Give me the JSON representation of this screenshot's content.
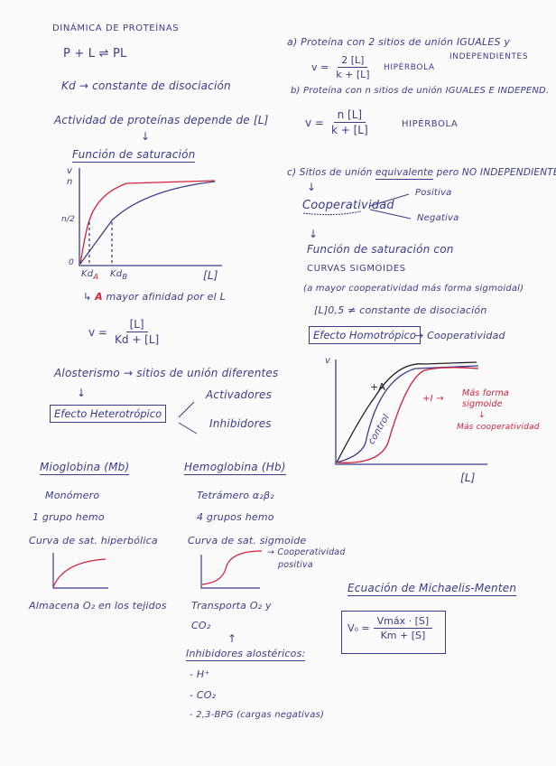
{
  "left": {
    "title": "DINÁMICA DE PROTEÍNAS",
    "reaction": "P + L ⇌ PL",
    "kd_def": "Kd → constante de disociación",
    "activity": "Actividad de proteínas depende de [L]",
    "arrow_down": "↓",
    "saturation_title": "Función de saturación",
    "graph1": {
      "y_label": "v",
      "n_label": "n",
      "half_label": "n/2",
      "zero_label": "0",
      "kda_label": "Kd",
      "kda_sub": "A",
      "kdb_label": "Kd",
      "kdb_sub": "B",
      "x_label": "[L]"
    },
    "affinity_prefix": "↳ ",
    "affinity_a": "A",
    "affinity_rest": " mayor afinidad por el L",
    "formula": {
      "lhs": "v =",
      "num": "[L]",
      "den": "Kd + [L]"
    }
  },
  "right": {
    "a_line": "a) Proteína con 2 sitios de unión IGUALES y",
    "a_line2": "INDEPENDIENTES",
    "a_formula": {
      "lhs": "v =",
      "num": "2 [L]",
      "den": "k + [L]"
    },
    "a_type": "HIPÉRBOLA",
    "b_line": "b) Proteína con n sitios de unión IGUALES E INDEPEND.",
    "b_formula": {
      "lhs": "v =",
      "num": "n [L]",
      "den": "k + [L]"
    },
    "b_type": "HIPÉRBOLA",
    "c_line_pre": "c) Sitios de unión ",
    "c_line_ul": "equivalente",
    "c_line_post": " pero NO INDEPENDIENTES",
    "arrow_down": "↓",
    "cooperativity": "Cooperatividad",
    "positive": "Positiva",
    "negative": "Negativa",
    "arrow_down2": "↓",
    "sat_with": "Función de saturación con",
    "sigmoid": "CURVAS SIGMOIDES",
    "more_coop": "(a mayor cooperatividad más forma sigmoidal)",
    "l05": "[L]0,5 ≠ constante de disociación",
    "homotropic": "Efecto Homotrópico",
    "homotropic_arrow": "→ Cooperatividad"
  },
  "allosterism": {
    "line": "Alosterismo → sitios de unión diferentes",
    "arrow_down": "↓",
    "heterotropic": "Efecto Heterotrópico",
    "activators": "Activadores",
    "inhibitors": "Inhibidores",
    "graph2": {
      "y_label": "v",
      "x_label": "[L]",
      "plus_a": "+A",
      "control": "control",
      "plus_i": "+I →",
      "more_sigmoid": "Más forma sigmoide",
      "arrow": "↓",
      "more_coop": "Más cooperatividad"
    },
    "colors": {
      "activator": "#222222",
      "control": "#3b3c8e",
      "inhibitor": "#d3203b"
    }
  },
  "myoglobin": {
    "title": "Mioglobina (Mb)",
    "monomer": "Monómero",
    "heme": "1 grupo hemo",
    "curve": "Curva de sat. hiperbólica",
    "function": "Almacena O₂ en los tejidos"
  },
  "hemoglobin": {
    "title": "Hemoglobina (Hb)",
    "tetramer": "Tetrámero α₂β₂",
    "heme": "4 grupos hemo",
    "curve": "Curva de sat. sigmoide",
    "coop": "→ Cooperatividad",
    "coop2": "positiva",
    "function": "Transporta O₂ y",
    "function2": "CO₂",
    "arrow_up": "↑",
    "inhibitors_title": "Inhibidores alostéricos:",
    "inhibitors": [
      "- H⁺",
      "- CO₂",
      "- 2,3-BPG (cargas negativas)"
    ]
  },
  "michaelis": {
    "title": "Ecuación de Michaelis-Menten",
    "lhs": "V₀ =",
    "num": "Vmáx · [S]",
    "den": "Km + [S]"
  }
}
